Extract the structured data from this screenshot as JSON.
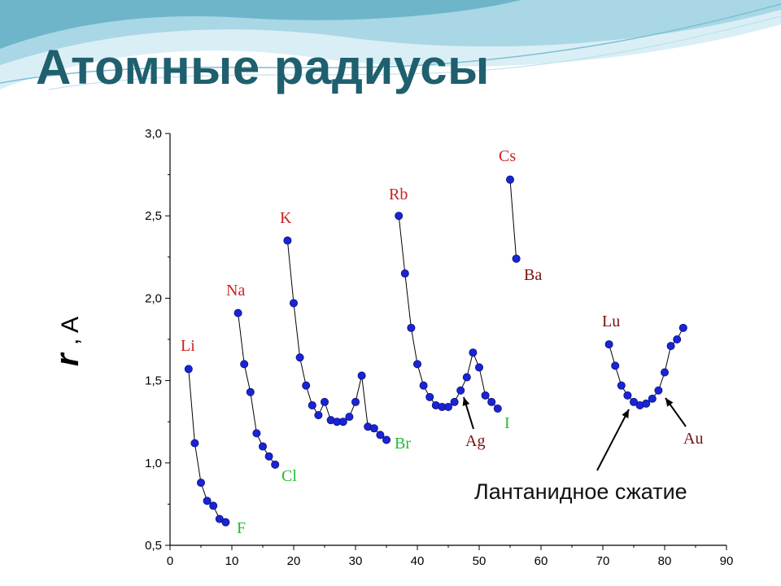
{
  "slide": {
    "title": "Атомные радиусы",
    "annotation": "Лантанидное сжатие"
  },
  "colors": {
    "title": "#1f5f6e",
    "marker": "#1a24d6",
    "marker_edge": "#0a0f7a",
    "line": "#000000",
    "alkali_label": "#cc2222",
    "halogen_label": "#22bb33",
    "dark_label": "#7a1010",
    "wave_light": "#bfe3ee",
    "wave_dark": "#6fb5c9"
  },
  "chart_data": {
    "type": "line",
    "title": "",
    "xlabel": "",
    "ylabel_symbol": "r",
    "ylabel_unit": ", A",
    "xlim": [
      0,
      90
    ],
    "ylim": [
      0.5,
      3.0
    ],
    "xticks": [
      "0",
      "10",
      "20",
      "30",
      "40",
      "50",
      "60",
      "70",
      "80",
      "90"
    ],
    "yticks": [
      "0,5",
      "1,0",
      "1,5",
      "2,0",
      "2,5",
      "3,0"
    ],
    "series": [
      {
        "x": [
          3,
          4,
          5,
          6,
          7,
          8,
          9
        ],
        "y": [
          1.57,
          1.12,
          0.88,
          0.77,
          0.74,
          0.66,
          0.64
        ]
      },
      {
        "x": [
          11,
          12,
          13,
          14,
          15,
          16,
          17
        ],
        "y": [
          1.91,
          1.6,
          1.43,
          1.18,
          1.1,
          1.04,
          0.99
        ]
      },
      {
        "x": [
          19,
          20,
          21,
          22,
          23,
          24,
          25,
          26,
          27,
          28,
          29,
          30,
          31,
          32,
          33,
          34,
          35
        ],
        "y": [
          2.35,
          1.97,
          1.64,
          1.47,
          1.35,
          1.29,
          1.37,
          1.26,
          1.25,
          1.25,
          1.28,
          1.37,
          1.53,
          1.22,
          1.21,
          1.17,
          1.14
        ]
      },
      {
        "x": [
          37,
          38,
          39,
          40,
          41,
          42,
          43,
          44,
          45,
          46,
          47,
          48,
          49,
          50,
          51,
          52,
          53
        ],
        "y": [
          2.5,
          2.15,
          1.82,
          1.6,
          1.47,
          1.4,
          1.35,
          1.34,
          1.34,
          1.37,
          1.44,
          1.52,
          1.67,
          1.58,
          1.41,
          1.37,
          1.33
        ]
      },
      {
        "x": [
          55,
          56
        ],
        "y": [
          2.72,
          2.24
        ]
      },
      {
        "x": [
          71,
          72,
          73,
          74,
          75,
          76,
          77,
          78,
          79,
          80,
          81,
          82,
          83
        ],
        "y": [
          1.72,
          1.59,
          1.47,
          1.41,
          1.37,
          1.35,
          1.36,
          1.39,
          1.44,
          1.55,
          1.71,
          1.75,
          1.82
        ]
      }
    ],
    "labels": [
      {
        "text": "Li",
        "color": "alkali"
      },
      {
        "text": "F",
        "color": "halogen"
      },
      {
        "text": "Na",
        "color": "alkali"
      },
      {
        "text": "Cl",
        "color": "halogen"
      },
      {
        "text": "K",
        "color": "alkali"
      },
      {
        "text": "Br",
        "color": "halogen"
      },
      {
        "text": "Rb",
        "color": "alkali"
      },
      {
        "text": "Ag",
        "color": "dark"
      },
      {
        "text": "I",
        "color": "halogen"
      },
      {
        "text": "Cs",
        "color": "alkali"
      },
      {
        "text": "Ba",
        "color": "dark"
      },
      {
        "text": "Lu",
        "color": "dark"
      },
      {
        "text": "Au",
        "color": "dark"
      }
    ]
  }
}
